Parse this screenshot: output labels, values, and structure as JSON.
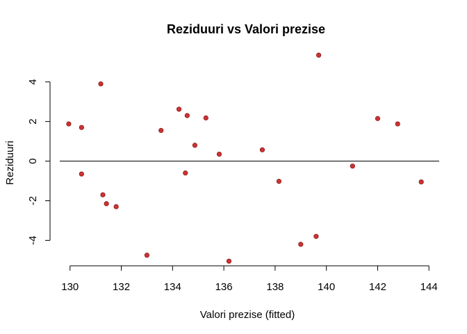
{
  "chart_data": {
    "type": "scatter",
    "title": "Reziduuri vs Valori prezise",
    "xlabel": "Valori prezise (fitted)",
    "ylabel": "Reziduuri",
    "xlim": [
      129.6,
      144.4
    ],
    "ylim": [
      -5.25,
      5.5
    ],
    "x_ticks": [
      130,
      132,
      134,
      136,
      138,
      140,
      142,
      144
    ],
    "y_ticks": [
      -4,
      -2,
      0,
      2,
      4
    ],
    "x_tick_labels": [
      "130",
      "132",
      "134",
      "136",
      "138",
      "140",
      "142",
      "144"
    ],
    "y_tick_labels": [
      "-4",
      "-2",
      "0",
      "2",
      "4"
    ],
    "reference_line_y": 0,
    "grid": false,
    "legend": "none",
    "point_color": "#CD3333",
    "point_edge_color": "#8B1A1A",
    "points": [
      {
        "x": 129.95,
        "y": 1.88
      },
      {
        "x": 130.45,
        "y": 1.7
      },
      {
        "x": 130.45,
        "y": -0.65
      },
      {
        "x": 131.2,
        "y": 3.9
      },
      {
        "x": 131.28,
        "y": -1.7
      },
      {
        "x": 131.42,
        "y": -2.15
      },
      {
        "x": 131.8,
        "y": -2.3
      },
      {
        "x": 133.0,
        "y": -4.75
      },
      {
        "x": 133.55,
        "y": 1.55
      },
      {
        "x": 134.25,
        "y": 2.62
      },
      {
        "x": 134.5,
        "y": -0.6
      },
      {
        "x": 134.57,
        "y": 2.3
      },
      {
        "x": 134.87,
        "y": 0.8
      },
      {
        "x": 135.3,
        "y": 2.18
      },
      {
        "x": 135.82,
        "y": 0.35
      },
      {
        "x": 136.2,
        "y": -5.05
      },
      {
        "x": 137.5,
        "y": 0.57
      },
      {
        "x": 138.15,
        "y": -1.02
      },
      {
        "x": 139.0,
        "y": -4.2
      },
      {
        "x": 139.6,
        "y": -3.8
      },
      {
        "x": 139.7,
        "y": 5.35
      },
      {
        "x": 141.02,
        "y": -0.25
      },
      {
        "x": 142.0,
        "y": 2.15
      },
      {
        "x": 142.78,
        "y": 1.88
      },
      {
        "x": 143.7,
        "y": -1.05
      }
    ]
  }
}
